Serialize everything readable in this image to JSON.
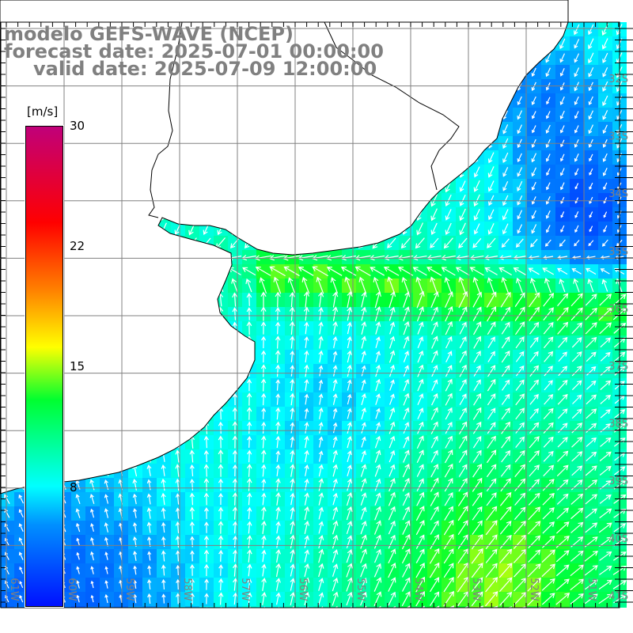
{
  "title": {
    "model": "modelo GEFS-WAVE (NCEP)",
    "forecast": "forecast date: 2025-07-01 00:00:00",
    "valid": "valid date: 2025-07-09 12:00:00"
  },
  "colorbar": {
    "unit": "[m/s]",
    "ticks": [
      "30",
      "22",
      "15",
      "8"
    ],
    "tick_values": [
      30,
      22,
      15,
      8
    ],
    "colors": [
      "#0010ff",
      "#0090ff",
      "#00ffff",
      "#00ff30",
      "#ffff00",
      "#ff8000",
      "#ff0000",
      "#c0007a"
    ]
  },
  "axes": {
    "lon_labels": [
      "61W",
      "60W",
      "59W",
      "58W",
      "57W",
      "56W",
      "55W",
      "54W",
      "53W",
      "52W",
      "51W"
    ],
    "lat_labels": [
      "32S",
      "33S",
      "34S",
      "35S",
      "36S",
      "37S",
      "38S",
      "39S",
      "40S",
      "41S"
    ]
  },
  "colors": {
    "grid": "#808080",
    "land": "#ffffff",
    "coast": "#000000",
    "arrow": "#ffffff",
    "label": "#808080"
  }
}
